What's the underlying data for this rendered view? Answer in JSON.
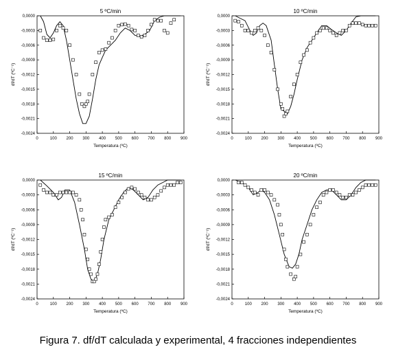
{
  "caption": "Figura 7. df/dT calculada y experimental, 4 fracciones independientes",
  "chart_data": [
    {
      "type": "line",
      "title": "5 ºC/min",
      "xlabel": "Temperatura (ºC)",
      "ylabel": "df/dT (ºC⁻¹)",
      "xlim": [
        0,
        900
      ],
      "ylim": [
        -0.0024,
        0.0
      ],
      "xticks": [
        0,
        100,
        200,
        300,
        400,
        500,
        600,
        700,
        800,
        900
      ],
      "yticks": [
        0.0,
        -0.0003,
        -0.0006,
        -0.0009,
        -0.0012,
        -0.0015,
        -0.0018,
        -0.0021,
        -0.0024
      ],
      "ytick_labels": [
        "0,0000",
        "-0,0003",
        "-0,0006",
        "-0,0009",
        "-0,0012",
        "-0,0015",
        "-0,0018",
        "-0,0021",
        "-0,0024"
      ],
      "series": [
        {
          "marker": "line",
          "x": [
            20,
            40,
            60,
            80,
            100,
            120,
            140,
            160,
            180,
            200,
            220,
            240,
            260,
            280,
            300,
            320,
            340,
            360,
            380,
            400,
            420,
            450,
            480,
            510,
            540,
            570,
            600,
            630,
            660,
            690,
            720,
            750,
            780,
            820,
            860,
            880
          ],
          "y": [
            0.0,
            -0.00012,
            -0.00038,
            -0.00045,
            -0.00035,
            -0.0002,
            -0.00012,
            -0.0002,
            -0.0005,
            -0.0009,
            -0.0013,
            -0.0017,
            -0.002,
            -0.0022,
            -0.0022,
            -0.00205,
            -0.0017,
            -0.0013,
            -0.001,
            -0.00085,
            -0.0007,
            -0.0006,
            -0.0005,
            -0.00035,
            -0.00025,
            -0.0003,
            -0.0004,
            -0.00042,
            -0.00038,
            -0.0003,
            -0.0001,
            -3e-05,
            0.0,
            0.0,
            0.0,
            0.0
          ]
        },
        {
          "marker": "square",
          "x": [
            20,
            40,
            60,
            80,
            100,
            120,
            140,
            160,
            180,
            200,
            220,
            240,
            260,
            275,
            290,
            300,
            310,
            320,
            340,
            360,
            380,
            400,
            420,
            440,
            460,
            480,
            500,
            520,
            540,
            560,
            580,
            600,
            620,
            640,
            660,
            680,
            700,
            720,
            740,
            760,
            780,
            800,
            820,
            840
          ],
          "y": [
            -0.0003,
            -0.00045,
            -0.0005,
            -0.0005,
            -0.00048,
            -0.0003,
            -0.0002,
            -0.00025,
            -0.0003,
            -0.0006,
            -0.0009,
            -0.0012,
            -0.0016,
            -0.0018,
            -0.00185,
            -0.0018,
            -0.00175,
            -0.0016,
            -0.0012,
            -0.00095,
            -0.00075,
            -0.0007,
            -0.00068,
            -0.00055,
            -0.00045,
            -0.0003,
            -0.0002,
            -0.00018,
            -0.00017,
            -0.0002,
            -0.00028,
            -0.0003,
            -0.0004,
            -0.00043,
            -0.0004,
            -0.0003,
            -0.00018,
            -8e-05,
            -0.0001,
            -0.0001,
            -0.0003,
            -0.00035,
            -0.00015,
            -8e-05
          ]
        }
      ]
    },
    {
      "type": "line",
      "title": "10 ºC/min",
      "xlabel": "Temperatura (ºC)",
      "ylabel": "df/dT (ºC⁻¹)",
      "xlim": [
        0,
        900
      ],
      "ylim": [
        -0.0024,
        0.0
      ],
      "xticks": [
        0,
        100,
        200,
        300,
        400,
        500,
        600,
        700,
        800,
        900
      ],
      "yticks": [
        0.0,
        -0.0003,
        -0.0006,
        -0.0009,
        -0.0012,
        -0.0015,
        -0.0018,
        -0.0021,
        -0.0024
      ],
      "ytick_labels": [
        "0,0000",
        "-0,0003",
        "-0,0006",
        "-0,0009",
        "-0,0012",
        "-0,0015",
        "-0,0018",
        "-0,0021",
        "-0,0024"
      ],
      "series": [
        {
          "marker": "line",
          "x": [
            20,
            50,
            80,
            110,
            130,
            150,
            170,
            190,
            210,
            240,
            260,
            280,
            300,
            320,
            340,
            360,
            380,
            400,
            430,
            460,
            490,
            520,
            550,
            580,
            610,
            640,
            670,
            700,
            730,
            760,
            790,
            820,
            850,
            880
          ],
          "y": [
            0.0,
            -5e-05,
            -0.0001,
            -0.0003,
            -0.0004,
            -0.00035,
            -0.0002,
            -0.00015,
            -0.0002,
            -0.0005,
            -0.001,
            -0.0015,
            -0.0019,
            -0.00195,
            -0.002,
            -0.00185,
            -0.0016,
            -0.0013,
            -0.0009,
            -0.00065,
            -0.0005,
            -0.00035,
            -0.0002,
            -0.0002,
            -0.00028,
            -0.00035,
            -0.0004,
            -0.0003,
            -0.00015,
            -2e-05,
            0.0,
            0.0,
            0.0,
            0.0
          ]
        },
        {
          "marker": "square",
          "x": [
            20,
            40,
            60,
            80,
            100,
            120,
            140,
            160,
            180,
            200,
            220,
            240,
            260,
            280,
            300,
            310,
            320,
            330,
            340,
            360,
            380,
            400,
            420,
            440,
            460,
            480,
            500,
            520,
            540,
            560,
            580,
            600,
            620,
            640,
            660,
            680,
            700,
            720,
            740,
            760,
            780,
            800,
            820,
            840,
            860,
            880
          ],
          "y": [
            -0.0001,
            -0.00012,
            -0.0002,
            -0.0003,
            -0.0003,
            -0.00035,
            -0.0003,
            -0.00025,
            -0.0003,
            -0.0004,
            -0.0006,
            -0.00075,
            -0.0011,
            -0.0015,
            -0.0018,
            -0.0019,
            -0.00205,
            -0.002,
            -0.00195,
            -0.00165,
            -0.0014,
            -0.0012,
            -0.00095,
            -0.0008,
            -0.0007,
            -0.00055,
            -0.00045,
            -0.00035,
            -0.0003,
            -0.00025,
            -0.00025,
            -0.0003,
            -0.00035,
            -0.0004,
            -0.00035,
            -0.0003,
            -0.0003,
            -0.0002,
            -0.00015,
            -0.00015,
            -0.00015,
            -0.00018,
            -0.0002,
            -0.0002,
            -0.0002,
            -0.0002
          ]
        }
      ]
    },
    {
      "type": "line",
      "title": "15 ºC/min",
      "xlabel": "Temperatura (ºC)",
      "ylabel": "df/dT (ºC⁻¹)",
      "xlim": [
        0,
        900
      ],
      "ylim": [
        -0.0024,
        0.0
      ],
      "xticks": [
        0,
        100,
        200,
        300,
        400,
        500,
        600,
        700,
        800,
        900
      ],
      "yticks": [
        0.0,
        -0.0003,
        -0.0006,
        -0.0009,
        -0.0012,
        -0.0015,
        -0.0018,
        -0.0021,
        -0.0024
      ],
      "ytick_labels": [
        "0,0000",
        "-0,0003",
        "-0,0006",
        "-0,0009",
        "-0,0012",
        "-0,0015",
        "-0,0018",
        "-0,0021",
        "-0,0024"
      ],
      "series": [
        {
          "marker": "line",
          "x": [
            20,
            60,
            100,
            130,
            150,
            170,
            200,
            230,
            260,
            290,
            310,
            330,
            350,
            370,
            390,
            410,
            440,
            470,
            500,
            530,
            560,
            590,
            620,
            650,
            680,
            710,
            740,
            770,
            800,
            830,
            860,
            880
          ],
          "y": [
            0.0,
            -0.00012,
            -0.00025,
            -0.0004,
            -0.00035,
            -0.0002,
            -0.0002,
            -0.00045,
            -0.0009,
            -0.0014,
            -0.0018,
            -0.002,
            -0.00205,
            -0.0019,
            -0.0016,
            -0.0012,
            -0.0008,
            -0.0006,
            -0.0004,
            -0.00025,
            -0.00015,
            -0.0002,
            -0.0003,
            -0.0004,
            -0.00035,
            -0.0002,
            -0.0001,
            -5e-05,
            0.0,
            0.0,
            0.0,
            0.0
          ]
        },
        {
          "marker": "square",
          "x": [
            20,
            40,
            60,
            80,
            100,
            120,
            140,
            160,
            180,
            200,
            220,
            240,
            260,
            270,
            280,
            290,
            300,
            310,
            320,
            330,
            340,
            350,
            360,
            370,
            380,
            390,
            400,
            410,
            420,
            440,
            460,
            480,
            500,
            520,
            540,
            560,
            580,
            600,
            620,
            640,
            660,
            680,
            700,
            720,
            740,
            760,
            780,
            800,
            820,
            840,
            860,
            880
          ],
          "y": [
            -0.0001,
            -0.0002,
            -0.00025,
            -0.00025,
            -0.0003,
            -0.0003,
            -0.00025,
            -0.00025,
            -0.00025,
            -0.00025,
            -0.00025,
            -0.0003,
            -0.0004,
            -0.0006,
            -0.0008,
            -0.0011,
            -0.0014,
            -0.0016,
            -0.0018,
            -0.0019,
            -0.00205,
            -0.00205,
            -0.002,
            -0.0019,
            -0.0017,
            -0.00145,
            -0.0012,
            -0.00095,
            -0.0008,
            -0.00075,
            -0.0007,
            -0.00055,
            -0.00045,
            -0.00035,
            -0.00025,
            -0.00018,
            -0.00015,
            -0.00018,
            -0.00025,
            -0.0003,
            -0.00035,
            -0.0004,
            -0.0004,
            -0.00035,
            -0.0003,
            -0.00022,
            -0.00015,
            -0.0001,
            -0.0001,
            -0.0001,
            -5e-05,
            -5e-05
          ]
        }
      ]
    },
    {
      "type": "line",
      "title": "20 ºC/min",
      "xlabel": "Temperatura (ºC)",
      "ylabel": "df/dT (ºC⁻¹)",
      "xlim": [
        0,
        900
      ],
      "ylim": [
        -0.0024,
        0.0
      ],
      "xticks": [
        0,
        100,
        200,
        300,
        400,
        500,
        600,
        700,
        800,
        900
      ],
      "yticks": [
        0.0,
        -0.0003,
        -0.0006,
        -0.0009,
        -0.0012,
        -0.0015,
        -0.0018,
        -0.0021,
        -0.0024
      ],
      "ytick_labels": [
        "0,0000",
        "-0,0003",
        "-0,0006",
        "-0,0009",
        "-0,0012",
        "-0,0015",
        "-0,0018",
        "-0,0021",
        "-0,0024"
      ],
      "series": [
        {
          "marker": "line",
          "x": [
            20,
            60,
            100,
            130,
            160,
            180,
            200,
            230,
            260,
            290,
            320,
            350,
            370,
            390,
            410,
            430,
            460,
            490,
            520,
            550,
            580,
            610,
            640,
            670,
            700,
            730,
            760,
            790,
            820,
            850,
            880
          ],
          "y": [
            0.0,
            -5e-05,
            -0.00015,
            -0.0003,
            -0.00025,
            -0.0002,
            -0.00025,
            -0.0004,
            -0.0007,
            -0.0011,
            -0.0015,
            -0.00175,
            -0.00178,
            -0.0017,
            -0.0015,
            -0.0012,
            -0.0009,
            -0.0006,
            -0.0004,
            -0.00025,
            -0.0002,
            -0.0002,
            -0.0003,
            -0.0004,
            -0.0004,
            -0.0003,
            -0.00015,
            -5e-05,
            0.0,
            0.0,
            0.0
          ]
        },
        {
          "marker": "square",
          "x": [
            40,
            60,
            80,
            100,
            120,
            140,
            160,
            180,
            200,
            220,
            240,
            260,
            280,
            290,
            300,
            310,
            320,
            330,
            340,
            360,
            380,
            390,
            400,
            420,
            440,
            460,
            480,
            500,
            520,
            540,
            560,
            580,
            600,
            620,
            640,
            660,
            680,
            700,
            720,
            740,
            760,
            780,
            800,
            820,
            840,
            860,
            880
          ],
          "y": [
            -5e-05,
            -5e-05,
            -0.0001,
            -0.00015,
            -0.0002,
            -0.00025,
            -0.0003,
            -0.0002,
            -0.0002,
            -0.00025,
            -0.0003,
            -0.0004,
            -0.0005,
            -0.0007,
            -0.0009,
            -0.0011,
            -0.0014,
            -0.0016,
            -0.00175,
            -0.0019,
            -0.002,
            -0.00195,
            -0.00175,
            -0.0015,
            -0.00125,
            -0.0011,
            -0.0009,
            -0.0007,
            -0.00055,
            -0.00045,
            -0.0003,
            -0.00025,
            -0.0002,
            -0.0002,
            -0.00025,
            -0.0003,
            -0.00035,
            -0.00035,
            -0.0003,
            -0.0003,
            -0.00025,
            -0.0002,
            -0.00015,
            -0.0001,
            -0.0001,
            -0.0001,
            -0.0001
          ]
        }
      ]
    }
  ]
}
